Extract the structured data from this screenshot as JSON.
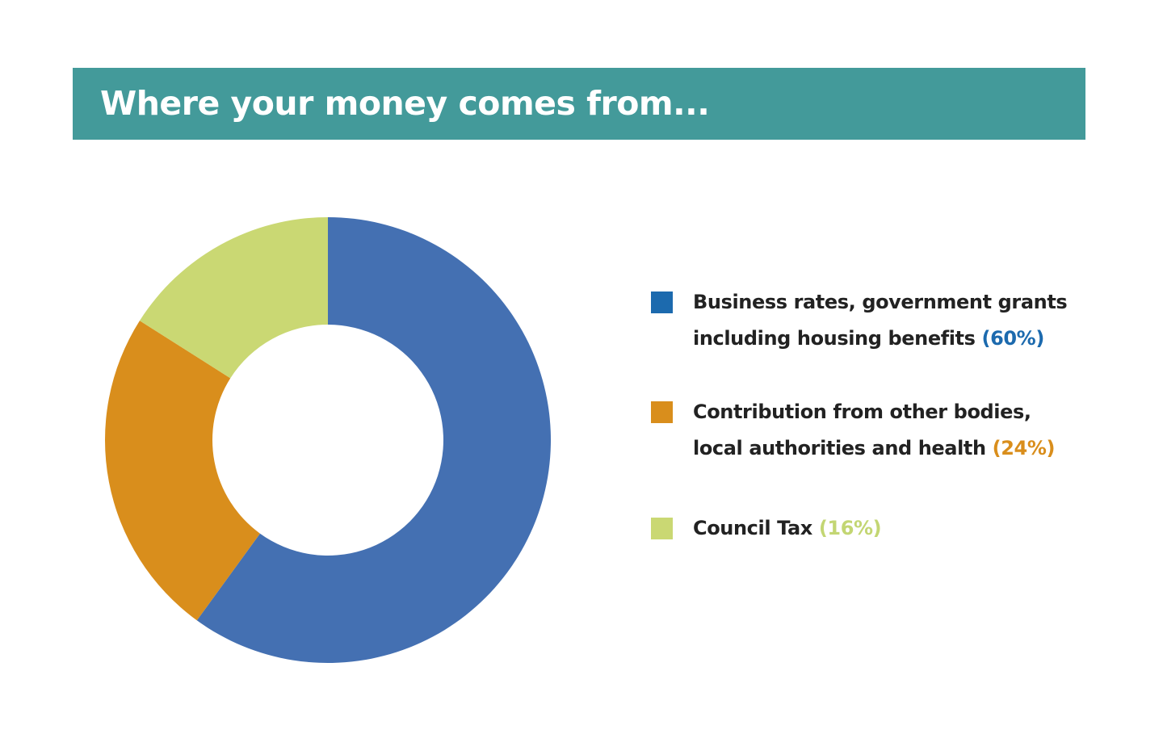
{
  "title": "Where your money comes from...",
  "chart_data": {
    "type": "pie",
    "variant": "donut",
    "title": "Where your money comes from...",
    "legend_position": "right",
    "slices": [
      {
        "label_line1": "Business rates, government grants",
        "label_line2": "including housing benefits",
        "pct_label": "(60%)",
        "value": 60,
        "color": "#4470b2",
        "legend_color": "#1c6aae",
        "pct_color": "#1c6aae"
      },
      {
        "label_line1": "Contribution from other bodies,",
        "label_line2": "local authorities and health",
        "pct_label": "(24%)",
        "value": 24,
        "color": "#d98e1c",
        "legend_color": "#d98e1c",
        "pct_color": "#d98e1c"
      },
      {
        "label_line1": "Council Tax",
        "label_line2": "",
        "pct_label": "(16%)",
        "value": 16,
        "color": "#cad873",
        "legend_color": "#cad873",
        "pct_color": "#c3d673"
      }
    ]
  }
}
